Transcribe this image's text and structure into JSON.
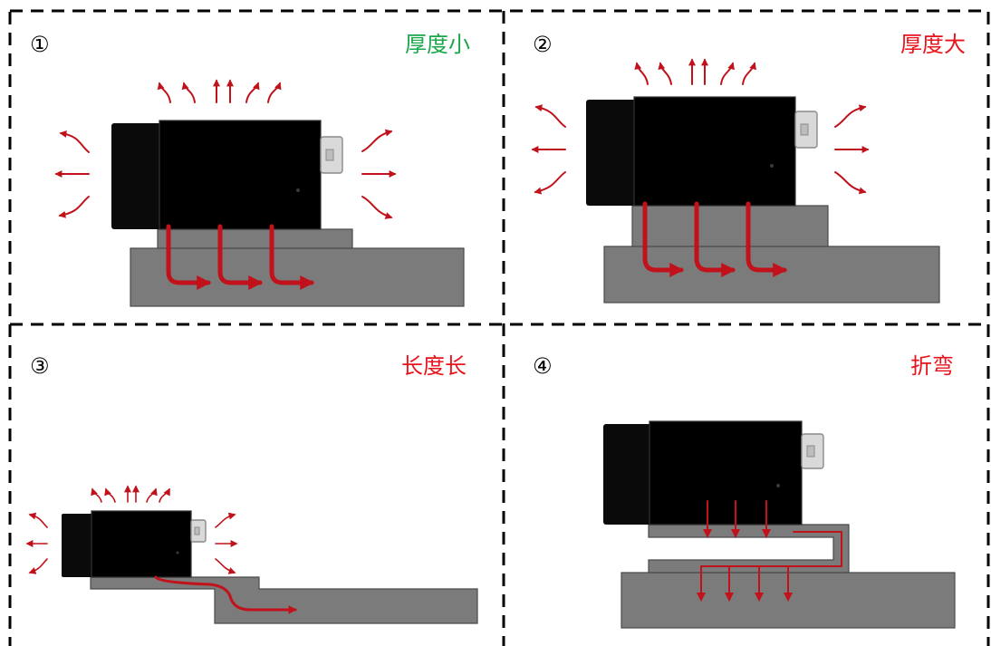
{
  "panels": [
    {
      "number": "①",
      "caption": "厚度小",
      "caption_color": "#1aa64a"
    },
    {
      "number": "②",
      "caption": "厚度大",
      "caption_color": "#e8141b"
    },
    {
      "number": "③",
      "caption": "长度长",
      "caption_color": "#e8141b"
    },
    {
      "number": "④",
      "caption": "折弯",
      "caption_color": "#e8141b"
    }
  ],
  "colors": {
    "heat_arrow": "#c1121b",
    "plate": "#7b7b7b",
    "camera_body": "#000000",
    "divider": "#000000"
  },
  "icons": {
    "camera": "industrial-camera-icon",
    "heat_flow": "heat-flow-arrow-icon"
  }
}
